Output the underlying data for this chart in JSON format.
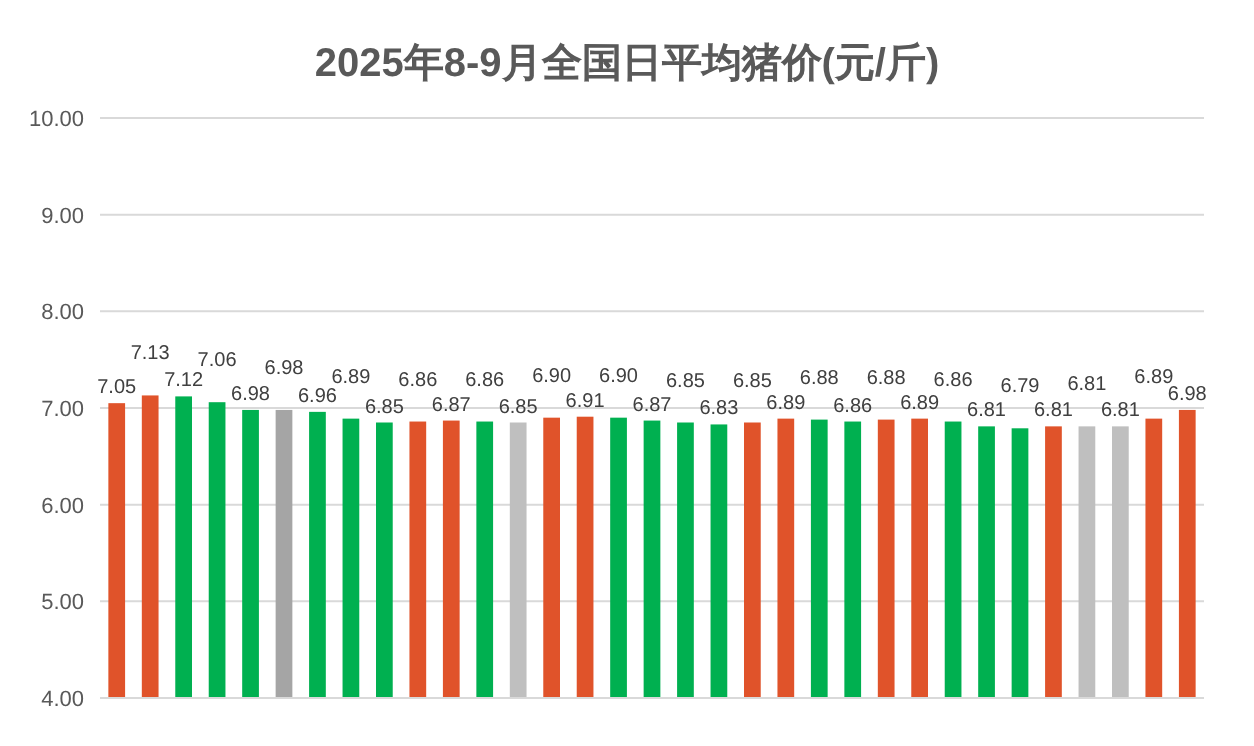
{
  "chart_data": {
    "type": "bar",
    "title": "2025年8-9月全国日平均猪价(元/斤)",
    "categories": [
      null,
      null,
      null,
      null,
      null,
      null,
      null,
      null,
      null,
      null,
      null,
      null,
      null,
      null,
      null,
      null,
      null,
      null,
      null,
      null,
      null,
      null,
      null,
      null,
      null,
      null,
      null,
      null,
      null,
      null,
      null,
      null,
      null
    ],
    "values": [
      7.05,
      7.13,
      7.12,
      7.06,
      6.98,
      6.98,
      6.96,
      6.89,
      6.85,
      6.86,
      6.87,
      6.86,
      6.85,
      6.9,
      6.91,
      6.9,
      6.87,
      6.85,
      6.83,
      6.85,
      6.89,
      6.88,
      6.86,
      6.88,
      6.89,
      6.86,
      6.81,
      6.79,
      6.81,
      6.81,
      6.81,
      6.89,
      6.98
    ],
    "value_labels": [
      "7.05",
      "7.13",
      "7.12",
      "7.06",
      "6.98",
      "6.98",
      "6.96",
      "6.89",
      "6.85",
      "6.86",
      "6.87",
      "6.86",
      "6.85",
      "6.90",
      "6.91",
      "6.90",
      "6.87",
      "6.85",
      "6.83",
      "6.85",
      "6.89",
      "6.88",
      "6.86",
      "6.88",
      "6.89",
      "6.86",
      "6.81",
      "6.79",
      "6.81",
      "6.81",
      "6.81",
      "6.89",
      "6.98"
    ],
    "colors": [
      "#e0532a",
      "#e0532a",
      "#00b050",
      "#00b050",
      "#00b050",
      "#a5a5a5",
      "#00b050",
      "#00b050",
      "#00b050",
      "#e0532a",
      "#e0532a",
      "#00b050",
      "#bfbfbf",
      "#e0532a",
      "#e0532a",
      "#00b050",
      "#00b050",
      "#00b050",
      "#00b050",
      "#e0532a",
      "#e0532a",
      "#00b050",
      "#00b050",
      "#e0532a",
      "#e0532a",
      "#00b050",
      "#00b050",
      "#00b050",
      "#e0532a",
      "#bfbfbf",
      "#bfbfbf",
      "#e0532a",
      "#e0532a"
    ],
    "ylim": [
      4,
      10
    ],
    "yticks": [
      {
        "value": 4,
        "label": "4.00"
      },
      {
        "value": 5,
        "label": "5.00"
      },
      {
        "value": 6,
        "label": "6.00"
      },
      {
        "value": 7,
        "label": "7.00"
      },
      {
        "value": 8,
        "label": "8.00"
      },
      {
        "value": 9,
        "label": "9.00"
      },
      {
        "value": 10,
        "label": "10.00"
      }
    ],
    "grid": "y"
  }
}
